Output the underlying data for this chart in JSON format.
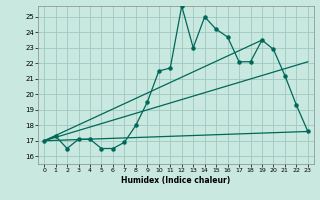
{
  "xlabel": "Humidex (Indice chaleur)",
  "bg_color": "#c8e8e0",
  "grid_color": "#a0c8c0",
  "line_color": "#006858",
  "xlim": [
    -0.5,
    23.5
  ],
  "ylim": [
    15.5,
    25.7
  ],
  "xticks": [
    0,
    1,
    2,
    3,
    4,
    5,
    6,
    7,
    8,
    9,
    10,
    11,
    12,
    13,
    14,
    15,
    16,
    17,
    18,
    19,
    20,
    21,
    22,
    23
  ],
  "yticks": [
    16,
    17,
    18,
    19,
    20,
    21,
    22,
    23,
    24,
    25
  ],
  "series1_x": [
    0,
    1,
    2,
    3,
    4,
    5,
    6,
    7,
    8,
    9,
    10,
    11,
    12,
    13,
    14,
    15,
    16,
    17,
    18,
    19,
    20,
    21,
    22,
    23
  ],
  "series1_y": [
    17.0,
    17.3,
    16.5,
    17.1,
    17.1,
    16.5,
    16.5,
    16.9,
    18.0,
    19.5,
    21.5,
    21.7,
    25.7,
    23.0,
    25.0,
    24.2,
    23.7,
    22.1,
    22.1,
    23.5,
    22.9,
    21.2,
    19.3,
    17.6
  ],
  "line1_x": [
    0,
    23
  ],
  "line1_y": [
    17.0,
    17.6
  ],
  "line2_x": [
    0,
    23
  ],
  "line2_y": [
    17.0,
    22.1
  ],
  "line3_x": [
    0,
    19
  ],
  "line3_y": [
    17.0,
    23.5
  ]
}
